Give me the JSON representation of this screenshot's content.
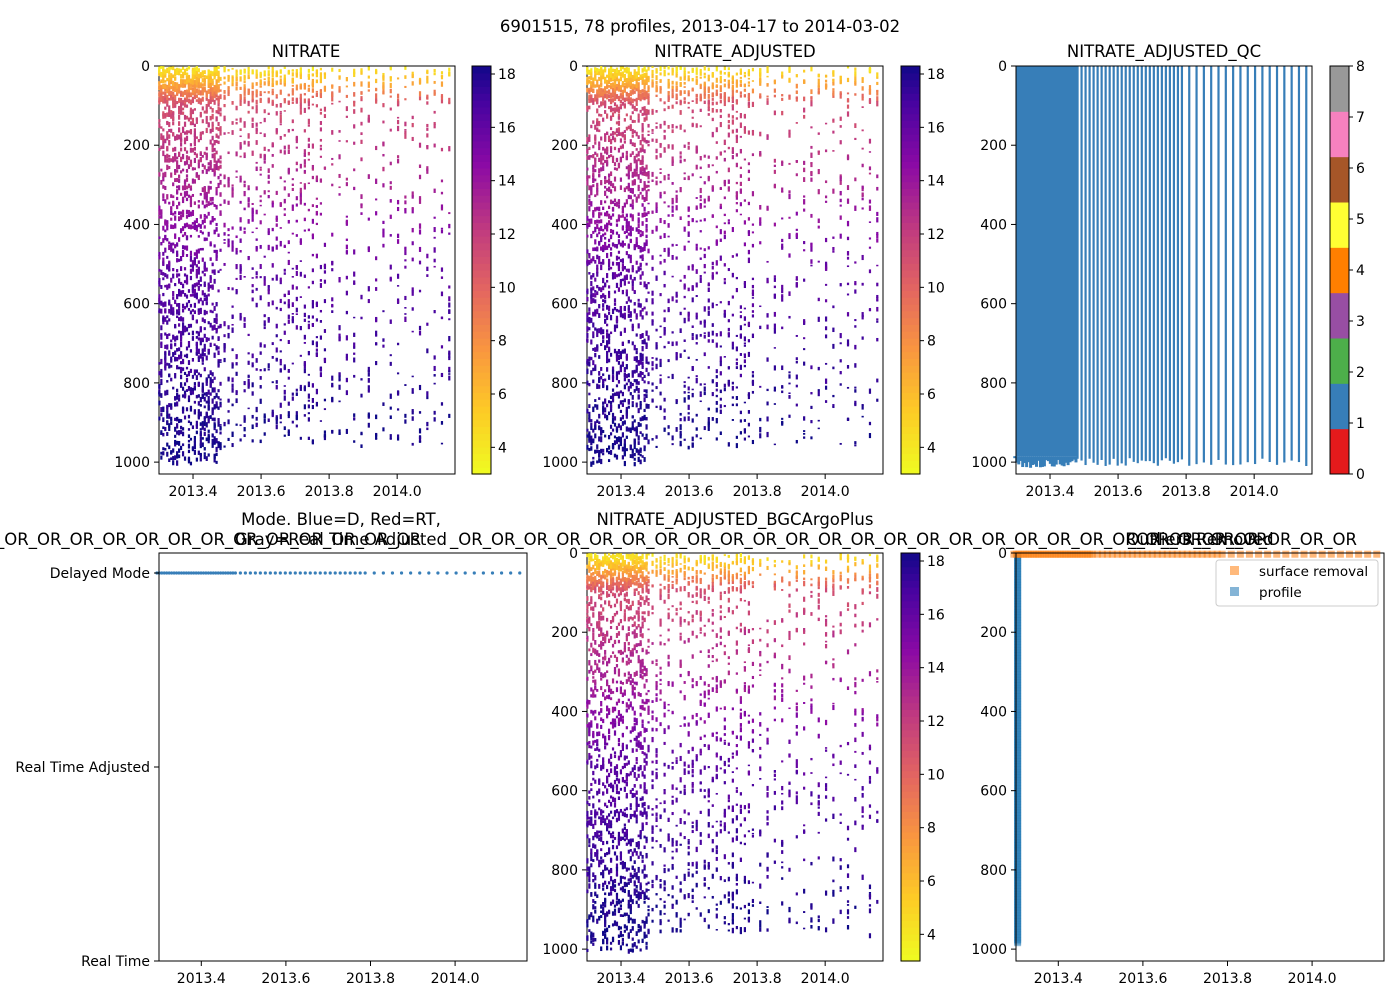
{
  "figure": {
    "suptitle": "6901515, 78 profiles, 2013-04-17 to 2014-03-02"
  },
  "colors": {
    "profile_blue": "#377eb8",
    "surface_orange": "#ff7f0e",
    "qc_palette": [
      "#e41a1c",
      "#377eb8",
      "#4daf4a",
      "#984ea3",
      "#ff7f00",
      "#ffff33",
      "#a65628",
      "#f781bf",
      "#999999"
    ]
  },
  "chart_data": [
    {
      "id": "nitrate",
      "type": "heatmap",
      "title": "NITRATE",
      "xlim": [
        2013.3,
        2014.17
      ],
      "ylim": [
        1030,
        0
      ],
      "xticks": [
        2013.4,
        2013.6,
        2013.8,
        2014.0
      ],
      "xtick_labels": [
        "2013.4",
        "2013.6",
        "2013.8",
        "2014.0"
      ],
      "yticks": [
        0,
        200,
        400,
        600,
        800,
        1000
      ],
      "ytick_labels": [
        "0",
        "200",
        "400",
        "600",
        "800",
        "1000"
      ],
      "colorbar": {
        "cmap": "plasma_r",
        "range": [
          3,
          18.3
        ],
        "ticks": [
          4,
          6,
          8,
          10,
          12,
          14,
          16,
          18
        ],
        "tick_labels": [
          "4",
          "6",
          "8",
          "10",
          "12",
          "14",
          "16",
          "18"
        ]
      }
    },
    {
      "id": "nitrate-adjusted",
      "type": "heatmap",
      "title": "NITRATE_ADJUSTED",
      "xlim": [
        2013.3,
        2014.17
      ],
      "ylim": [
        1030,
        0
      ],
      "xticks": [
        2013.4,
        2013.6,
        2013.8,
        2014.0
      ],
      "xtick_labels": [
        "2013.4",
        "2013.6",
        "2013.8",
        "2014.0"
      ],
      "yticks": [
        0,
        200,
        400,
        600,
        800,
        1000
      ],
      "ytick_labels": [
        "0",
        "200",
        "400",
        "600",
        "800",
        "1000"
      ],
      "colorbar": {
        "cmap": "plasma_r",
        "range": [
          3,
          18.3
        ],
        "ticks": [
          4,
          6,
          8,
          10,
          12,
          14,
          16,
          18
        ],
        "tick_labels": [
          "4",
          "6",
          "8",
          "10",
          "12",
          "14",
          "16",
          "18"
        ]
      }
    },
    {
      "id": "nitrate-adjusted-qc",
      "type": "heatmap",
      "title": "NITRATE_ADJUSTED_QC",
      "xlim": [
        2013.3,
        2014.17
      ],
      "ylim": [
        1030,
        0
      ],
      "xticks": [
        2013.4,
        2013.6,
        2013.8,
        2014.0
      ],
      "xtick_labels": [
        "2013.4",
        "2013.6",
        "2013.8",
        "2014.0"
      ],
      "yticks": [
        0,
        200,
        400,
        600,
        800,
        1000
      ],
      "ytick_labels": [
        "0",
        "200",
        "400",
        "600",
        "800",
        "1000"
      ],
      "qc_value_shown": 1,
      "colorbar": {
        "cmap": "qc",
        "range": [
          0,
          8
        ],
        "ticks": [
          0,
          1,
          2,
          3,
          4,
          5,
          6,
          7,
          8
        ],
        "tick_labels": [
          "0",
          "1",
          "2",
          "3",
          "4",
          "5",
          "6",
          "7",
          "8"
        ]
      }
    },
    {
      "id": "mode",
      "type": "scatter",
      "title_lines": [
        "Mode. Blue=D, Red=RT,",
        "Gray=Real Time Adjusted"
      ],
      "title_overlay": "_OR_OR_OR_OR_OR_OR_OR_OR_OR_OR_OR_OR_OR",
      "xlim": [
        2013.3,
        2014.17
      ],
      "ylim": [
        0,
        2
      ],
      "xticks": [
        2013.4,
        2013.6,
        2013.8,
        2014.0
      ],
      "xtick_labels": [
        "2013.4",
        "2013.6",
        "2013.8",
        "2014.0"
      ],
      "yticks": [
        2,
        1,
        0
      ],
      "ytick_labels": [
        "Delayed Mode",
        "Real Time Adjusted",
        "Real Time"
      ],
      "mode_value": 2
    },
    {
      "id": "nitrate-bgcargoplus",
      "type": "heatmap",
      "title": "NITRATE_ADJUSTED_BGCArgoPlus",
      "title_overlay": "_OR_OR_OR_OR_OR_OR_OR_OR_OR_OR_OR_OR_OR_OR_OR_OR_OR_OR_OR_OR_OR_OR_OR_OR_OR",
      "xlim": [
        2013.3,
        2014.17
      ],
      "ylim": [
        1030,
        0
      ],
      "xticks": [
        2013.4,
        2013.6,
        2013.8,
        2014.0
      ],
      "xtick_labels": [
        "2013.4",
        "2013.6",
        "2013.8",
        "2014.0"
      ],
      "yticks": [
        0,
        200,
        400,
        600,
        800,
        1000
      ],
      "ytick_labels": [
        "0",
        "200",
        "400",
        "600",
        "800",
        "1000"
      ],
      "colorbar": {
        "cmap": "plasma_r",
        "range": [
          3,
          18.3
        ],
        "ticks": [
          4,
          6,
          8,
          10,
          12,
          14,
          16,
          18
        ],
        "tick_labels": [
          "4",
          "6",
          "8",
          "10",
          "12",
          "14",
          "16",
          "18"
        ]
      }
    },
    {
      "id": "outliers",
      "type": "scatter",
      "title": "Outliers Removed",
      "title_overlay": "_OR_OR_OR_OR_OR_OR_OR",
      "xlim": [
        2013.3,
        2014.17
      ],
      "ylim": [
        1030,
        0
      ],
      "xticks": [
        2013.4,
        2013.6,
        2013.8,
        2014.0
      ],
      "xtick_labels": [
        "2013.4",
        "2013.6",
        "2013.8",
        "2014.0"
      ],
      "yticks": [
        0,
        200,
        400,
        600,
        800,
        1000
      ],
      "ytick_labels": [
        "0",
        "200",
        "400",
        "600",
        "800",
        "1000"
      ],
      "legend": {
        "position": "upper right",
        "entries": [
          {
            "label": "surface removal",
            "color": "#ff7f0e"
          },
          {
            "label": "profile",
            "color": "#1f77b4"
          }
        ]
      },
      "profile_x": 2013.305,
      "profile_depth_range": [
        5,
        985
      ],
      "surface_depth": 3
    }
  ]
}
